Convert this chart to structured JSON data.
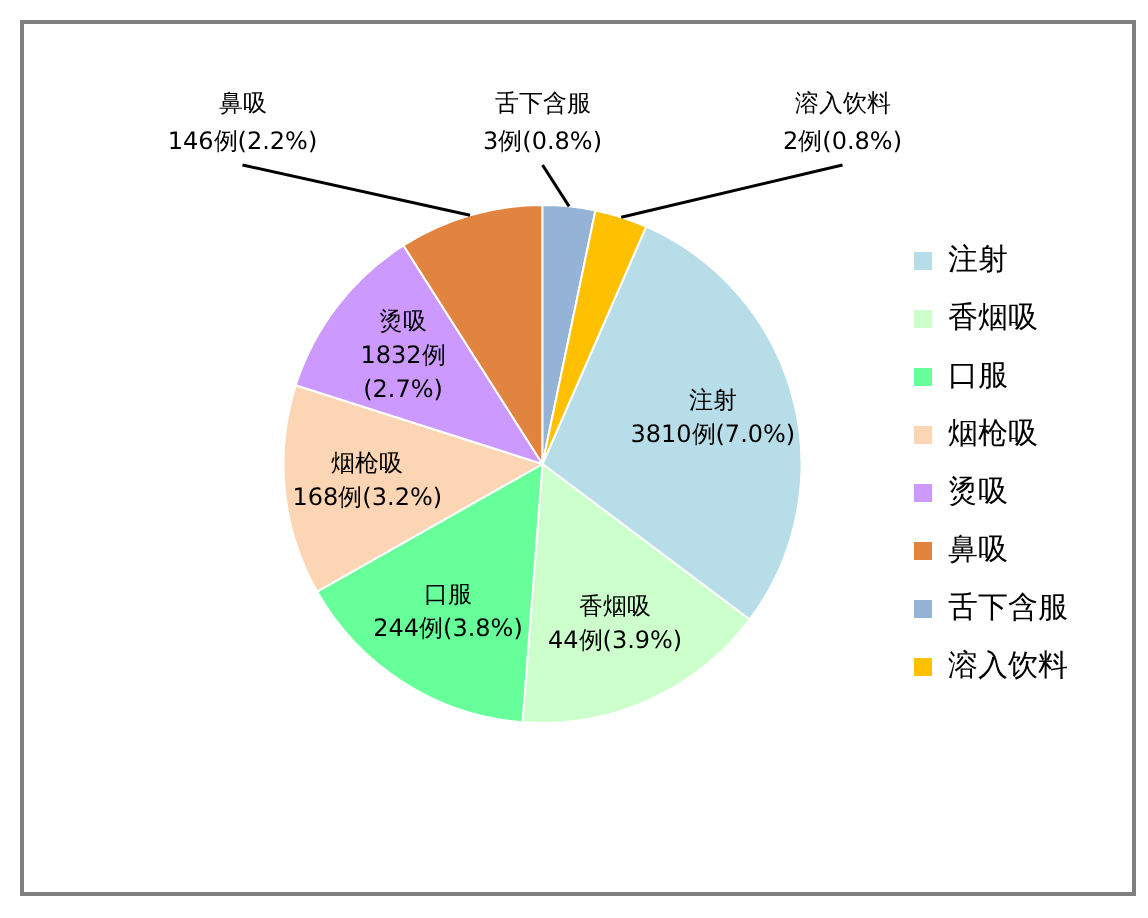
{
  "chart_data": {
    "type": "pie",
    "categories": [
      "注射",
      "香烟吸",
      "口服",
      "烟枪吸",
      "烫吸",
      "鼻吸",
      "舌下含服",
      "溶入饮料"
    ],
    "values": [
      7.0,
      3.9,
      3.8,
      3.2,
      2.7,
      2.2,
      0.8,
      0.8
    ],
    "value_labels": [
      "3810例(7.0%)",
      "44例(3.9%)",
      "244例(3.8%)",
      "168例(3.2%)",
      "1832例\n(2.7%)",
      "146例(2.2%)",
      "3例(0.8%)",
      "2例(0.8%)"
    ],
    "colors": [
      "#b7dde8",
      "#ccffcc",
      "#66ff99",
      "#fcd5b4",
      "#cc99ff",
      "#e0843f",
      "#95b3d7",
      "#ffc000"
    ],
    "legend": "right"
  }
}
